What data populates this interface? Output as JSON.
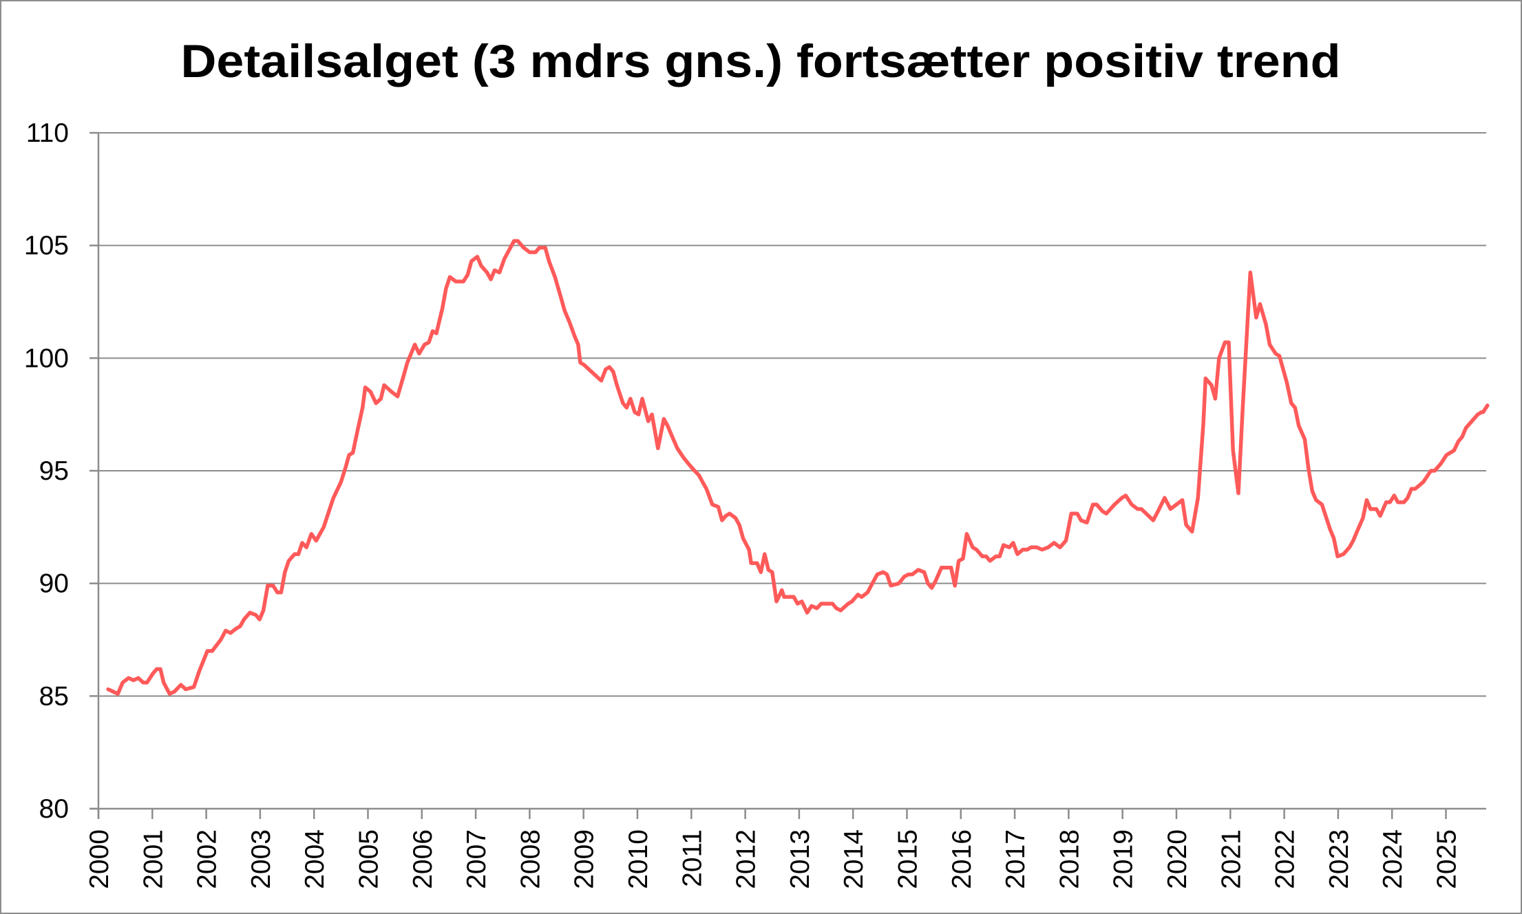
{
  "chart_data": {
    "type": "line",
    "title": "Detailsalget (3 mdrs gns.) fortsætter positiv trend",
    "xlabel": "",
    "ylabel": "",
    "ylim": [
      80,
      110
    ],
    "yticks": [
      "80",
      "85",
      "90",
      "95",
      "100",
      "105",
      "110"
    ],
    "xticks": [
      "2000",
      "2001",
      "2002",
      "2003",
      "2004",
      "2005",
      "2006",
      "2007",
      "2008",
      "2009",
      "2010",
      "2011",
      "2012",
      "2013",
      "2014",
      "2015",
      "2016",
      "2017",
      "2018",
      "2019",
      "2020",
      "2021",
      "2022",
      "2023",
      "2024",
      "2025"
    ],
    "grid": "horizontal",
    "legend": "none",
    "line_color": "#ff5a5a",
    "series": [
      {
        "x": [
          2000.18,
          2000.36,
          2000.45,
          2000.56,
          2000.65,
          2000.74,
          2000.83,
          2000.9,
          2001.01,
          2001.08,
          2001.15,
          2001.21,
          2001.32,
          2001.41,
          2001.53,
          2001.62,
          2001.77,
          2001.87,
          2002.02,
          2002.11,
          2002.27,
          2002.36,
          2002.45,
          2002.56,
          2002.63,
          2002.7,
          2002.81,
          2002.92,
          2002.99,
          2003.06,
          2003.14,
          2003.24,
          2003.32,
          2003.39,
          2003.46,
          2003.53,
          2003.64,
          2003.71,
          2003.78,
          2003.86,
          2003.95,
          2004.04,
          2004.18,
          2004.29,
          2004.36,
          2004.5,
          2004.58,
          2004.65,
          2004.72,
          2004.79,
          2004.9,
          2004.95,
          2005.05,
          2005.15,
          2005.24,
          2005.3,
          2005.44,
          2005.55,
          2005.66,
          2005.73,
          2005.87,
          2005.95,
          2006.05,
          2006.13,
          2006.2,
          2006.27,
          2006.38,
          2006.45,
          2006.52,
          2006.63,
          2006.77,
          2006.85,
          2006.92,
          2007.03,
          2007.1,
          2007.21,
          2007.28,
          2007.35,
          2007.44,
          2007.53,
          2007.71,
          2007.78,
          2007.89,
          2008.0,
          2008.11,
          2008.18,
          2008.29,
          2008.36,
          2008.47,
          2008.58,
          2008.65,
          2008.74,
          2008.83,
          2008.9,
          2008.94,
          2009.01,
          2009.1,
          2009.19,
          2009.33,
          2009.41,
          2009.48,
          2009.55,
          2009.62,
          2009.73,
          2009.8,
          2009.87,
          2009.95,
          2010.02,
          2010.09,
          2010.2,
          2010.27,
          2010.38,
          2010.49,
          2010.56,
          2010.63,
          2010.74,
          2010.85,
          2010.95,
          2011.06,
          2011.14,
          2011.21,
          2011.28,
          2011.39,
          2011.5,
          2011.57,
          2011.64,
          2011.71,
          2011.82,
          2011.89,
          2011.96,
          2012.07,
          2012.11,
          2012.22,
          2012.29,
          2012.36,
          2012.43,
          2012.5,
          2012.58,
          2012.68,
          2012.72,
          2012.9,
          2012.97,
          2013.05,
          2013.15,
          2013.23,
          2013.33,
          2013.41,
          2013.51,
          2013.62,
          2013.69,
          2013.77,
          2013.91,
          2013.98,
          2014.09,
          2014.16,
          2014.27,
          2014.38,
          2014.45,
          2014.56,
          2014.63,
          2014.7,
          2014.85,
          2014.95,
          2015.03,
          2015.1,
          2015.21,
          2015.32,
          2015.39,
          2015.46,
          2015.53,
          2015.64,
          2015.75,
          2015.82,
          2015.89,
          2015.96,
          2016.04,
          2016.11,
          2016.22,
          2016.29,
          2016.4,
          2016.47,
          2016.54,
          2016.65,
          2016.72,
          2016.79,
          2016.9,
          2016.97,
          2017.05,
          2017.15,
          2017.23,
          2017.3,
          2017.41,
          2017.51,
          2017.62,
          2017.73,
          2017.84,
          2017.95,
          2018.05,
          2018.16,
          2018.23,
          2018.34,
          2018.45,
          2018.52,
          2018.63,
          2018.7,
          2018.85,
          2018.99,
          2019.06,
          2019.17,
          2019.28,
          2019.35,
          2019.57,
          2019.68,
          2019.78,
          2019.89,
          2020.0,
          2020.11,
          2020.18,
          2020.29,
          2020.4,
          2020.5,
          2020.54,
          2020.65,
          2020.72,
          2020.79,
          2020.9,
          2020.97,
          2021.05,
          2021.15,
          2021.23,
          2021.37,
          2021.48,
          2021.55,
          2021.66,
          2021.73,
          2021.84,
          2021.91,
          2022.05,
          2022.13,
          2022.2,
          2022.27,
          2022.38,
          2022.45,
          2022.52,
          2022.59,
          2022.7,
          2022.85,
          2022.92,
          2022.99,
          2023.1,
          2023.21,
          2023.28,
          2023.35,
          2023.46,
          2023.53,
          2023.6,
          2023.71,
          2023.78,
          2023.89,
          2023.96,
          2024.04,
          2024.11,
          2024.22,
          2024.29,
          2024.36,
          2024.43,
          2024.58,
          2024.72,
          2024.79,
          2024.9,
          2025.01,
          2025.08,
          2025.15,
          2025.23,
          2025.3,
          2025.37,
          2025.48,
          2025.59,
          2025.66,
          2025.69,
          2025.77
        ],
        "values": [
          85.3,
          85.1,
          85.6,
          85.8,
          85.7,
          85.8,
          85.6,
          85.6,
          86.0,
          86.2,
          86.2,
          85.6,
          85.1,
          85.2,
          85.5,
          85.3,
          85.4,
          86.1,
          87.0,
          87.0,
          87.5,
          87.9,
          87.8,
          88.0,
          88.1,
          88.4,
          88.7,
          88.6,
          88.4,
          88.8,
          89.9,
          89.9,
          89.6,
          89.6,
          90.5,
          91.0,
          91.3,
          91.3,
          91.8,
          91.6,
          92.2,
          91.9,
          92.5,
          93.3,
          93.8,
          94.5,
          95.1,
          95.7,
          95.8,
          96.6,
          97.8,
          98.7,
          98.5,
          98.0,
          98.2,
          98.8,
          98.5,
          98.3,
          99.2,
          99.8,
          100.6,
          100.2,
          100.6,
          100.7,
          101.2,
          101.1,
          102.2,
          103.1,
          103.6,
          103.4,
          103.4,
          103.7,
          104.3,
          104.5,
          104.1,
          103.8,
          103.5,
          103.9,
          103.8,
          104.4,
          105.2,
          105.2,
          104.9,
          104.7,
          104.7,
          104.9,
          104.9,
          104.3,
          103.6,
          102.7,
          102.1,
          101.6,
          101.0,
          100.6,
          99.8,
          99.7,
          99.5,
          99.3,
          99.0,
          99.5,
          99.6,
          99.4,
          98.8,
          98.0,
          97.8,
          98.2,
          97.6,
          97.5,
          98.2,
          97.2,
          97.5,
          96.0,
          97.3,
          97.0,
          96.6,
          96.0,
          95.6,
          95.3,
          95.0,
          94.8,
          94.5,
          94.2,
          93.5,
          93.4,
          92.8,
          93.0,
          93.1,
          92.9,
          92.6,
          92.0,
          91.5,
          90.9,
          90.9,
          90.5,
          91.3,
          90.6,
          90.5,
          89.2,
          89.7,
          89.4,
          89.4,
          89.1,
          89.2,
          88.7,
          89.0,
          88.9,
          89.1,
          89.1,
          89.1,
          88.9,
          88.8,
          89.1,
          89.2,
          89.5,
          89.4,
          89.6,
          90.1,
          90.4,
          90.5,
          90.4,
          89.9,
          90.0,
          90.3,
          90.4,
          90.4,
          90.6,
          90.5,
          90.0,
          89.8,
          90.1,
          90.7,
          90.7,
          90.7,
          89.9,
          91.0,
          91.1,
          92.2,
          91.6,
          91.5,
          91.2,
          91.2,
          91.0,
          91.2,
          91.2,
          91.7,
          91.6,
          91.8,
          91.3,
          91.5,
          91.5,
          91.6,
          91.6,
          91.5,
          91.6,
          91.8,
          91.6,
          91.9,
          93.1,
          93.1,
          92.8,
          92.7,
          93.5,
          93.5,
          93.2,
          93.1,
          93.5,
          93.8,
          93.9,
          93.5,
          93.3,
          93.3,
          92.8,
          93.3,
          93.8,
          93.3,
          93.5,
          93.7,
          92.6,
          92.3,
          93.8,
          97.1,
          99.1,
          98.8,
          98.2,
          100.0,
          100.7,
          100.7,
          95.9,
          94.0,
          97.8,
          103.8,
          101.8,
          102.4,
          101.5,
          100.6,
          100.2,
          100.1,
          98.9,
          98.0,
          97.8,
          97.0,
          96.4,
          95.1,
          94.1,
          93.7,
          93.5,
          92.4,
          92.0,
          91.2,
          91.3,
          91.6,
          91.9,
          92.3,
          92.9,
          93.7,
          93.3,
          93.3,
          93.0,
          93.6,
          93.6,
          93.9,
          93.6,
          93.6,
          93.8,
          94.2,
          94.2,
          94.5,
          95.0,
          95.0,
          95.3,
          95.7,
          95.8,
          95.9,
          96.3,
          96.5,
          96.9,
          97.2,
          97.5,
          97.6,
          97.6,
          97.9
        ]
      }
    ]
  }
}
